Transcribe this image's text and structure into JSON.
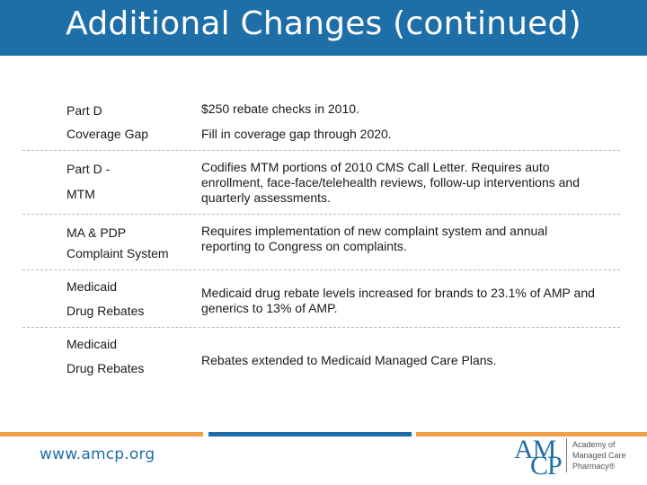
{
  "slide": {
    "title": "Additional Changes (continued)"
  },
  "rows": [
    {
      "label_lines": [
        "Part D"
      ],
      "desc": "$250 rebate checks in 2010."
    },
    {
      "label_lines": [
        "Coverage Gap"
      ],
      "desc": "Fill in coverage gap through 2020."
    },
    {
      "label_lines": [
        "Part D -",
        "MTM"
      ],
      "desc": "Codifies MTM portions of 2010 CMS Call Letter. Requires auto enrollment, face-face/telehealth reviews, follow-up interventions and quarterly assessments."
    },
    {
      "label_lines": [
        "MA & PDP",
        "Complaint System"
      ],
      "desc": "Requires implementation of new complaint system and annual reporting to Congress on complaints."
    },
    {
      "label_lines": [
        "Medicaid",
        "Drug Rebates"
      ],
      "desc": "Medicaid drug rebate levels increased for brands to 23.1% of AMP and generics to 13% of AMP."
    },
    {
      "label_lines": [
        "Medicaid",
        "Drug Rebates"
      ],
      "desc": "Rebates extended to Medicaid Managed Care Plans."
    }
  ],
  "footer": {
    "url": "www.amcp.org",
    "logo_letters_top": "AM",
    "logo_letters_bottom": "CP",
    "logo_text_lines": [
      "Academy of",
      "Managed Care",
      "Pharmacy®"
    ]
  },
  "colors": {
    "header": "#1e6fa8",
    "bar_orange": "#f0a046",
    "bar_blue": "#1e6fa8"
  }
}
